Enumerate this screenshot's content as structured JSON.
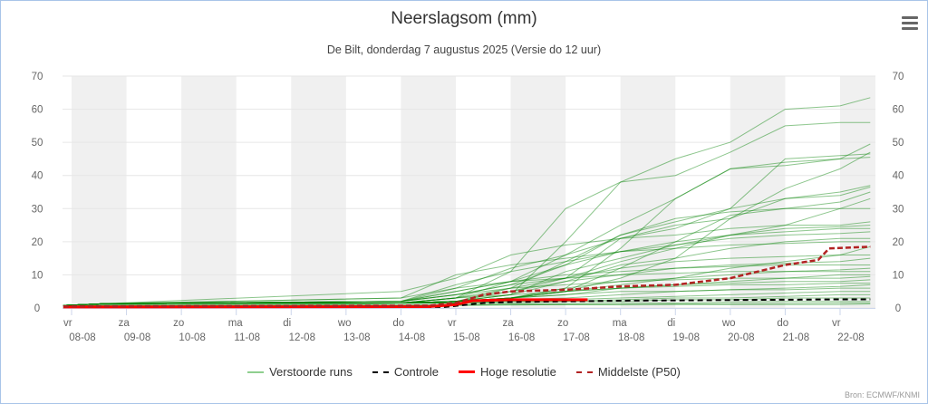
{
  "chart_data": {
    "type": "line",
    "title": "Neerslagsom (mm)",
    "subtitle": "De Bilt, donderdag 7 augustus 2025 (Versie do 12 uur)",
    "ylim": [
      0,
      70
    ],
    "yticks": [
      0,
      10,
      20,
      30,
      40,
      50,
      60,
      70
    ],
    "x_unit": "days since vr 08-08",
    "xticks": [
      {
        "day": "vr",
        "date": "08-08"
      },
      {
        "day": "za",
        "date": "09-08"
      },
      {
        "day": "zo",
        "date": "10-08"
      },
      {
        "day": "ma",
        "date": "11-08"
      },
      {
        "day": "di",
        "date": "12-08"
      },
      {
        "day": "wo",
        "date": "13-08"
      },
      {
        "day": "do",
        "date": "14-08"
      },
      {
        "day": "vr",
        "date": "15-08"
      },
      {
        "day": "za",
        "date": "16-08"
      },
      {
        "day": "zo",
        "date": "17-08"
      },
      {
        "day": "ma",
        "date": "18-08"
      },
      {
        "day": "di",
        "date": "19-08"
      },
      {
        "day": "wo",
        "date": "20-08"
      },
      {
        "day": "do",
        "date": "21-08"
      },
      {
        "day": "vr",
        "date": "22-08"
      }
    ],
    "colors": {
      "members": "#008000",
      "control": "#000000",
      "hires": "#ff0000",
      "p50": "#b22222",
      "band": "#f0f0f0",
      "grid": "#e6e6e6"
    },
    "member_days": [
      -0.15,
      0.6,
      6,
      7,
      8,
      9,
      10,
      11,
      12,
      13,
      14,
      14.55
    ],
    "members": [
      [
        0.8,
        1.3,
        1.5,
        2,
        4,
        20,
        38,
        45,
        50,
        60,
        61,
        63.5
      ],
      [
        0.8,
        1.3,
        1.5,
        3,
        11,
        30,
        38,
        40,
        47,
        55,
        56,
        56
      ],
      [
        0.8,
        1.3,
        2,
        4,
        7,
        13,
        22,
        26,
        30,
        45,
        46,
        46.5
      ],
      [
        0.8,
        1.3,
        1.5,
        1.8,
        3,
        6,
        18,
        33,
        42,
        43,
        45,
        49.5
      ],
      [
        0.8,
        1.3,
        1.5,
        2,
        3,
        5,
        9,
        15,
        27,
        36,
        42,
        47
      ],
      [
        0.8,
        1.3,
        1.5,
        3,
        8,
        16,
        25,
        33,
        42,
        44,
        45,
        45.5
      ],
      [
        0.8,
        1.3,
        1.5,
        2,
        5,
        9,
        21,
        25,
        27,
        33,
        35,
        37
      ],
      [
        0.8,
        1.3,
        2,
        6,
        12,
        16,
        21,
        24,
        30,
        33,
        34,
        36.5
      ],
      [
        0.8,
        1.3,
        1.5,
        2,
        3,
        5,
        12,
        20,
        28,
        30,
        32,
        35
      ],
      [
        0.8,
        1.3,
        1.5,
        2,
        4,
        11,
        15,
        19,
        22,
        25,
        30,
        33
      ],
      [
        0.8,
        1.3,
        1.5,
        2,
        6,
        14,
        22,
        27,
        29,
        30,
        30,
        30
      ],
      [
        0.8,
        1.3,
        5,
        9,
        16,
        19,
        21,
        22,
        24,
        25,
        25,
        26
      ],
      [
        0.8,
        1.3,
        2,
        5,
        8,
        13,
        17,
        20,
        22,
        24,
        24.5,
        25
      ],
      [
        0.8,
        1.3,
        1.5,
        3,
        6,
        9,
        14,
        18,
        22,
        23,
        24,
        24
      ],
      [
        0.8,
        1.3,
        2,
        7,
        11,
        14,
        17,
        19,
        21,
        22,
        22.5,
        23
      ],
      [
        0.8,
        1.3,
        1.5,
        2,
        4,
        8,
        13,
        15,
        18,
        20,
        21,
        21
      ],
      [
        0.8,
        1.3,
        3,
        10,
        13,
        15,
        17,
        18,
        19,
        19.5,
        20,
        20
      ],
      [
        0.8,
        1.3,
        1.5,
        2,
        3,
        5,
        7,
        9,
        12,
        14,
        16,
        18.5
      ],
      [
        0.8,
        1.3,
        2,
        4,
        7,
        9,
        12,
        14,
        15,
        15.5,
        16,
        16
      ],
      [
        0.8,
        1.3,
        1.5,
        3,
        5,
        8,
        10,
        12,
        13,
        13.5,
        14,
        15
      ],
      [
        0.8,
        1.3,
        2,
        5,
        8,
        10,
        11,
        12,
        12.5,
        13,
        13,
        13
      ],
      [
        0.8,
        1.3,
        1.5,
        2,
        3,
        6,
        8,
        9,
        10,
        11,
        11.5,
        12
      ],
      [
        0.8,
        1.3,
        3,
        6,
        8,
        9,
        10,
        10.5,
        11,
        11,
        11,
        11
      ],
      [
        0.8,
        1.3,
        1.5,
        2,
        3,
        4,
        6,
        7,
        8,
        9,
        10,
        10
      ],
      [
        0.8,
        1.3,
        2,
        4,
        6,
        7,
        8,
        8.5,
        9,
        9,
        9,
        9.5
      ],
      [
        0.8,
        1.3,
        1.5,
        2,
        3,
        5,
        6,
        7,
        7.5,
        8,
        8,
        8.5
      ],
      [
        0.8,
        1.3,
        1.5,
        3,
        4,
        5,
        6,
        6.5,
        7,
        7,
        7.5,
        7.5
      ],
      [
        0.8,
        1.3,
        1.5,
        2,
        2.5,
        3,
        4,
        5,
        5.5,
        6,
        6.5,
        7
      ],
      [
        0.8,
        1.3,
        1.5,
        2,
        3,
        4,
        5,
        5,
        5.5,
        5.5,
        6,
        6
      ],
      [
        0.8,
        1.3,
        1.5,
        1.5,
        2,
        2.5,
        3,
        3.5,
        4,
        4.5,
        5,
        5
      ],
      [
        0.8,
        1.3,
        1.5,
        1.5,
        2,
        2,
        2.5,
        3,
        3,
        3.5,
        4,
        4
      ],
      [
        0.8,
        1.3,
        1.5,
        1.5,
        1.5,
        2,
        2,
        2.5,
        2.5,
        3,
        3,
        3
      ],
      [
        0.6,
        1,
        1,
        1,
        1.2,
        1.3,
        1.5,
        1.5,
        1.8,
        2,
        2,
        2
      ],
      [
        0.5,
        0.8,
        0.8,
        0.8,
        1,
        1,
        1,
        1.2,
        1.3,
        1.4,
        1.5,
        1.5
      ],
      [
        0.5,
        0.8,
        0.8,
        0.8,
        0.9,
        1,
        1,
        1,
        1,
        1,
        1,
        1.2
      ]
    ],
    "control": {
      "days": [
        -0.15,
        6.8,
        7.5,
        8,
        9,
        10,
        11,
        12,
        13,
        14,
        14.55
      ],
      "values": [
        0.3,
        0.3,
        1.5,
        1.8,
        2,
        2.2,
        2.3,
        2.4,
        2.5,
        2.6,
        2.6
      ]
    },
    "hires": {
      "days": [
        -0.15,
        6.5,
        7,
        7.3,
        8,
        9,
        9.4
      ],
      "values": [
        0.3,
        0.4,
        1,
        2.2,
        2.5,
        2.5,
        2.5
      ]
    },
    "p50": {
      "days": [
        -0.15,
        6.5,
        7,
        7.5,
        8,
        9,
        9.5,
        10,
        11,
        11.5,
        12,
        12.5,
        13,
        13.6,
        13.8,
        14.55
      ],
      "values": [
        0.5,
        0.7,
        1.5,
        4,
        5,
        5.5,
        6,
        6.5,
        7,
        8,
        9,
        11,
        13,
        14.5,
        18,
        18.5
      ]
    },
    "legend": {
      "members": "Verstoorde runs",
      "control": "Controle",
      "hires": "Hoge resolutie",
      "p50": "Middelste (P50)"
    },
    "credits": "Bron: ECMWF/KNMI"
  }
}
